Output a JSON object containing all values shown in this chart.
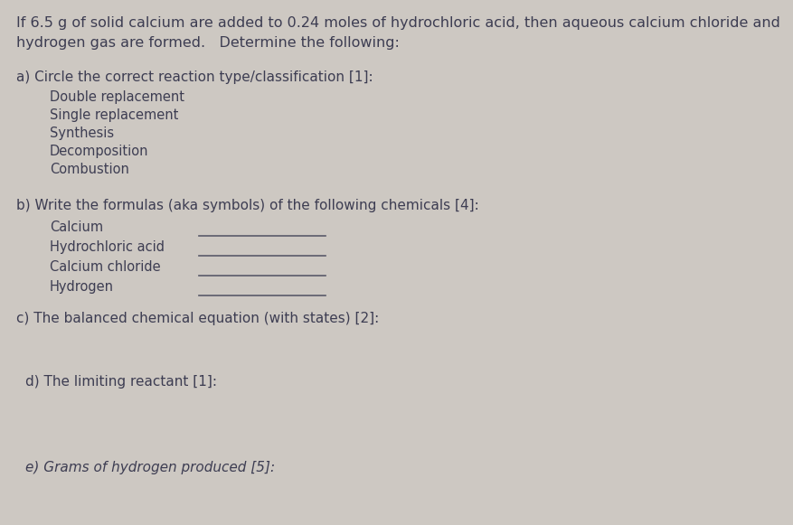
{
  "background_color": "#cdc8c2",
  "text_color": "#3d3d52",
  "title_line1": "If 6.5 g of solid calcium are added to 0.24 moles of hydrochloric acid, then aqueous calcium chloride and",
  "title_line2": "hydrogen gas are formed.   Determine the following:",
  "section_a_header": "a) Circle the correct reaction type/classification [1]:",
  "section_a_items": [
    "Double replacement",
    "Single replacement",
    "Synthesis",
    "Decomposition",
    "Combustion"
  ],
  "section_b_header": "b) Write the formulas (aka symbols) of the following chemicals [4]:",
  "section_b_items": [
    "Calcium",
    "Hydrochloric acid",
    "Calcium chloride",
    "Hydrogen"
  ],
  "section_c_header": "c) The balanced chemical equation (with states) [2]:",
  "section_d_header": "d) The limiting reactant [1]:",
  "section_e_header": "e) Grams of hydrogen produced [5]:",
  "font_size_title": 11.5,
  "font_size_section": 11.0,
  "font_size_items": 10.5,
  "line_color": "#5a5a6a",
  "line_width": 1.2,
  "fig_width": 8.77,
  "fig_height": 5.81,
  "dpi": 100
}
